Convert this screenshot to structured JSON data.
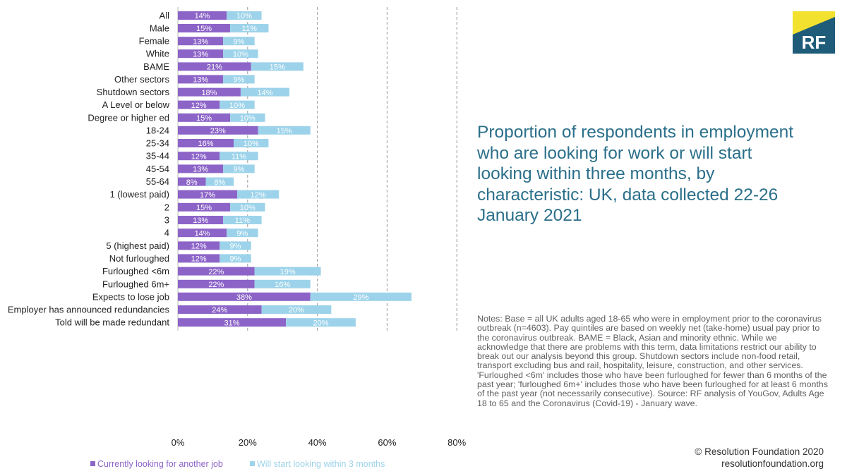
{
  "title": "Proportion of respondents in employment who are looking for work or will start looking within three months, by characteristic: UK, data collected 22-26 January 2021",
  "notes": "Notes: Base = all UK adults aged 18-65 who were in employment prior to the coronavirus outbreak (n=4603). Pay quintiles are based on weekly net (take-home) usual pay prior to the coronavirus outbreak. BAME = Black, Asian and minority ethnic. While we acknowledge that there are problems with this term, data limitations restrict our ability to break out our analysis beyond this group. Shutdown sectors include non-food retail, transport excluding bus and rail, hospitality, leisure, construction, and other services. 'Furloughed <6m' includes those who have been furloughed for fewer than 6 months of the past year; 'furloughed 6m+' includes those who have been furloughed for at least 6 months of the past year (not necessarily consecutive). Source: RF analysis of YouGov, Adults Age 18 to 65 and the Coronavirus (Covid-19) - January wave.",
  "footer": {
    "copyright": "© Resolution Foundation 2020",
    "website": "resolutionfoundation.org"
  },
  "logo": {
    "text": "RF",
    "colors": {
      "yellow": "#f2e12f",
      "navy": "#1f5c7a"
    }
  },
  "chart_data": {
    "type": "bar",
    "orientation": "horizontal",
    "stacked": true,
    "categories": [
      "All",
      "Male",
      "Female",
      "White",
      "BAME",
      "Other sectors",
      "Shutdown sectors",
      "A Level or below",
      "Degree or higher ed",
      "18-24",
      "25-34",
      "35-44",
      "45-54",
      "55-64",
      "1 (lowest paid)",
      "2",
      "3",
      "4",
      "5 (highest paid)",
      "Not furloughed",
      "Furloughed <6m",
      "Furloughed 6m+",
      "Expects to lose job",
      "Employer has announced redundancies",
      "Told will be made redundant"
    ],
    "groups": [
      [
        0
      ],
      [
        1,
        2
      ],
      [
        3,
        4
      ],
      [
        5,
        6
      ],
      [
        7,
        8
      ],
      [
        9,
        10,
        11,
        12,
        13
      ],
      [
        14,
        15,
        16,
        17,
        18
      ],
      [
        19,
        20,
        21
      ],
      [
        22,
        23,
        24
      ]
    ],
    "series": [
      {
        "name": "Currently looking for another job",
        "color": "#8c64c8",
        "values": [
          14,
          15,
          13,
          13,
          21,
          13,
          18,
          12,
          15,
          23,
          16,
          12,
          13,
          8,
          17,
          15,
          13,
          14,
          12,
          12,
          22,
          22,
          38,
          24,
          31
        ]
      },
      {
        "name": "Will start looking within 3 months",
        "color": "#9dd3ea",
        "values": [
          10,
          11,
          9,
          10,
          15,
          9,
          14,
          10,
          10,
          15,
          10,
          11,
          9,
          8,
          12,
          10,
          11,
          9,
          9,
          9,
          19,
          16,
          29,
          20,
          20
        ]
      }
    ],
    "xlim": [
      0,
      80
    ],
    "xticks": [
      "0%",
      "20%",
      "40%",
      "60%",
      "80%"
    ],
    "grid": "vertical dashed",
    "legend": "bottom-left"
  }
}
